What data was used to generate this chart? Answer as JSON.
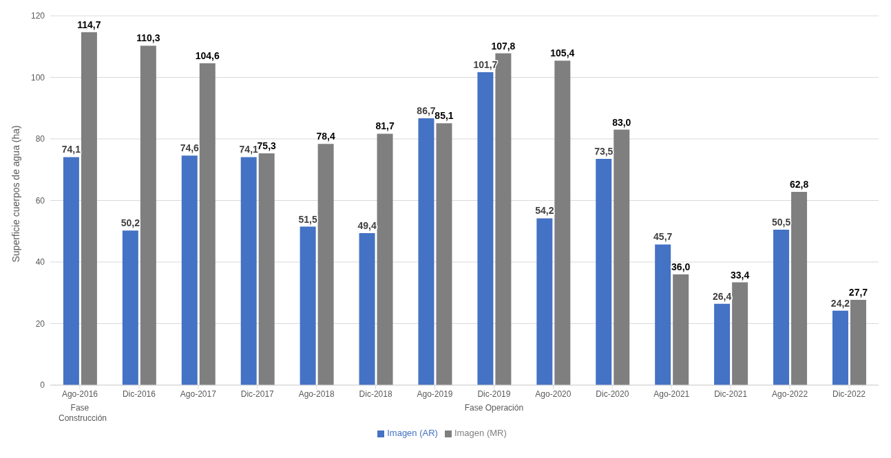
{
  "chart_data": {
    "type": "bar",
    "ylabel": "Superficie cuerpos de agua (ha)",
    "categories": [
      "Ago-2016",
      "Dic-2016",
      "Ago-2017",
      "Dic-2017",
      "Ago-2018",
      "Dic-2018",
      "Ago-2019",
      "Dic-2019",
      "Ago-2020",
      "Dic-2020",
      "Ago-2021",
      "Dic-2021",
      "Ago-2022",
      "Dic-2022"
    ],
    "series": [
      {
        "name": "Imagen (AR)",
        "color": "#4472c4",
        "values": [
          74.1,
          50.2,
          74.6,
          74.1,
          51.5,
          49.4,
          86.7,
          101.7,
          54.2,
          73.5,
          45.7,
          26.4,
          50.5,
          24.2
        ],
        "value_labels": [
          "74,1",
          "50,2",
          "74,6",
          "74,1",
          "51,5",
          "49,4",
          "86,7",
          "101,7",
          "54,2",
          "73,5",
          "45,7",
          "26,4",
          "50,5",
          "24,2"
        ]
      },
      {
        "name": "Imagen (MR)",
        "color": "#7f7f7f",
        "values": [
          114.7,
          110.3,
          104.6,
          75.3,
          78.4,
          81.7,
          85.1,
          107.8,
          105.4,
          83.0,
          36.0,
          33.4,
          62.8,
          27.7
        ],
        "value_labels": [
          "114,7",
          "110,3",
          "104,6",
          "75,3",
          "78,4",
          "81,7",
          "85,1",
          "107,8",
          "105,4",
          "83,0",
          "36,0",
          "33,4",
          "62,8",
          "27,7"
        ]
      }
    ],
    "ylim": [
      0,
      120
    ],
    "yticks": [
      0,
      20,
      40,
      60,
      80,
      100,
      120
    ],
    "grid": "y",
    "legend": "bottom",
    "annotations": [
      "Fase Construcción",
      "Fase Operación"
    ]
  }
}
